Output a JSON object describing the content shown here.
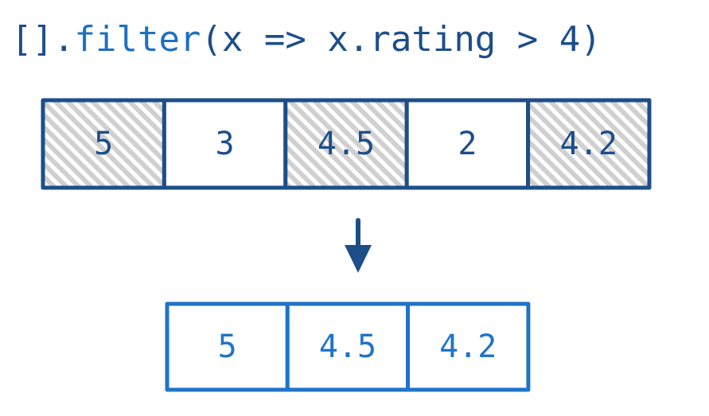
{
  "code": {
    "brackets": "[]",
    "dot": ".",
    "method": "filter",
    "args": "(x => x.rating > 4)"
  },
  "source_array": {
    "values": [
      "5",
      "3",
      "4.5",
      "2",
      "4.2"
    ],
    "highlighted": [
      true,
      false,
      true,
      false,
      true
    ]
  },
  "result_array": {
    "values": [
      "5",
      "4.5",
      "4.2"
    ]
  },
  "colors": {
    "code_text": "#1d4e89",
    "method_text": "#1f6fbf",
    "source_border": "#1d4e89",
    "source_text": "#1d4e89",
    "hatch_fill": "#d0d0d0",
    "arrow": "#1d4e89",
    "result_border": "#1f74c8",
    "result_text": "#1f74c8"
  }
}
